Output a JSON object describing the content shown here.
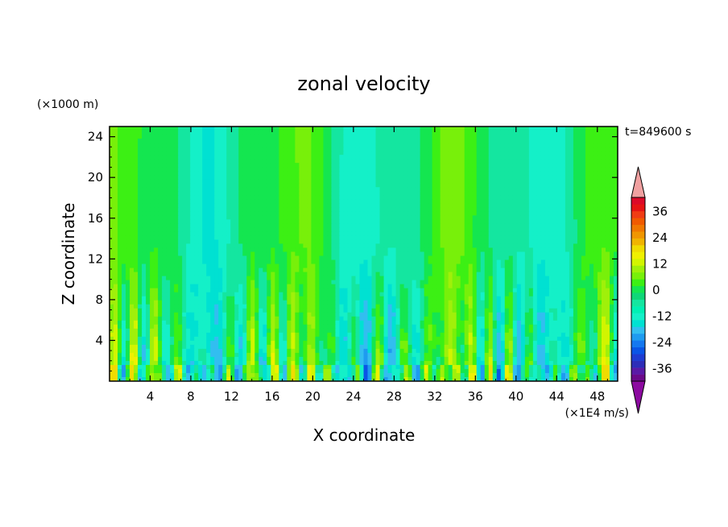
{
  "chart_data": {
    "type": "heatmap",
    "title": "zonal velocity",
    "xlabel": "X coordinate",
    "ylabel": "Z coordinate",
    "x_units": "(×1E4 m/s)",
    "y_units": "(×1000 m)",
    "time_label": "t=849600 s",
    "xlim": [
      0,
      50
    ],
    "ylim": [
      0,
      25
    ],
    "x_ticks": [
      4,
      8,
      12,
      16,
      20,
      24,
      28,
      32,
      36,
      40,
      44,
      48
    ],
    "y_ticks": [
      4,
      8,
      12,
      16,
      20,
      24
    ],
    "colorbar": {
      "levels": [
        -42,
        -39,
        -36,
        -33,
        -30,
        -27,
        -24,
        -21,
        -18,
        -15,
        -12,
        -9,
        -6,
        -3,
        0,
        3,
        6,
        9,
        12,
        15,
        18,
        21,
        24,
        27,
        30,
        33,
        36,
        39,
        42
      ],
      "tick_labels": [
        "36",
        "24",
        "12",
        "0",
        "-12",
        "-24",
        "-36"
      ],
      "tick_values": [
        36,
        24,
        12,
        0,
        -12,
        -24,
        -36
      ],
      "colors": [
        "#6b0a8a",
        "#5a1aa6",
        "#2d2db8",
        "#1e3cd2",
        "#0a55e6",
        "#1478f0",
        "#1e9bf0",
        "#32bef0",
        "#00e1d2",
        "#14f0c8",
        "#00f0b4",
        "#14e6a0",
        "#0fd778",
        "#14e650",
        "#3cf014",
        "#78f00a",
        "#a0f00a",
        "#d2f500",
        "#f0f000",
        "#f0dc00",
        "#f0b400",
        "#f09600",
        "#f07800",
        "#f05a00",
        "#f03c14",
        "#e61414",
        "#dc0a28",
        "#f0a0a0"
      ],
      "under_color": "#8c0aa0",
      "over_color": "#f0a0a0"
    },
    "field_description": "bands: mostly -6 to 6, with alternating vertical columns of positive (yellow) and negative (cyan/blue) anomalies near the surface"
  }
}
